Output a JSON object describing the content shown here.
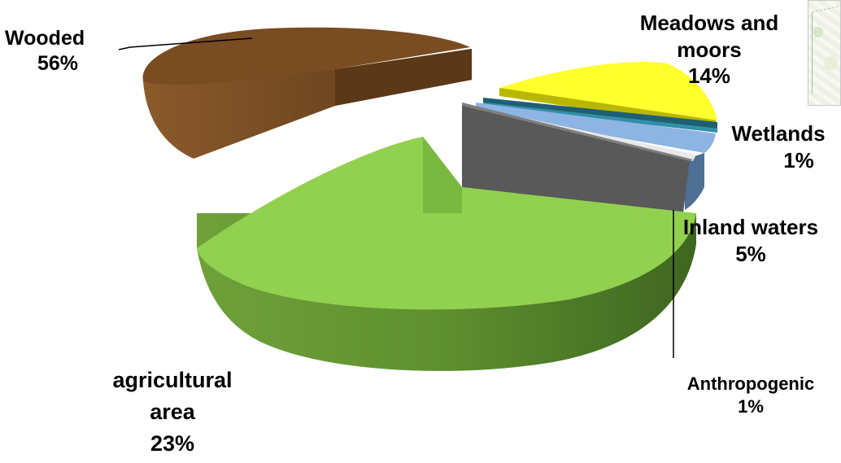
{
  "chart_data": {
    "type": "pie",
    "title": "",
    "three_d": true,
    "exploded": true,
    "slices": [
      {
        "label": "Wooded",
        "value": 56,
        "value_label": "56%",
        "color": "#8B5A2B"
      },
      {
        "label": "Meadows and moors",
        "value": 14,
        "value_label": "14%",
        "color": "#FFFF2E"
      },
      {
        "label": "Wetlands",
        "value": 1,
        "value_label": "1%",
        "color": "#2E8FA8"
      },
      {
        "label": "Inland waters",
        "value": 5,
        "value_label": "5%",
        "color": "#8DB4E2"
      },
      {
        "label": "Anthropogenic",
        "value": 1,
        "value_label": "1%",
        "color": "#E0E0E0"
      },
      {
        "label": "",
        "value": 0,
        "value_label": "",
        "color": "#595959"
      },
      {
        "label": "agricultural area",
        "value": 23,
        "value_label": "23%",
        "color": "#92D050"
      }
    ],
    "legend": "none"
  }
}
